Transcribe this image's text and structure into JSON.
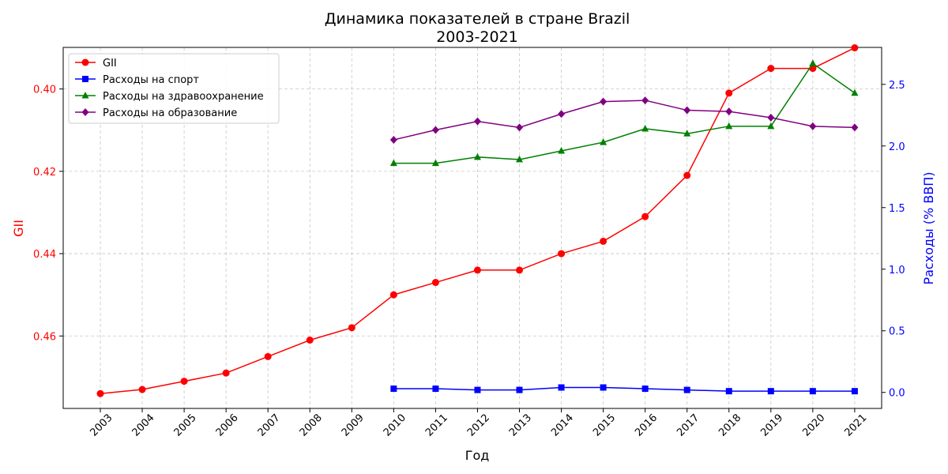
{
  "chart_data": {
    "type": "line",
    "title": "Динамика показателей в стране Brazil",
    "subtitle": "2003-2021",
    "xlabel": "Год",
    "ylabel_left": "GII",
    "ylabel_right": "Расходы (% ВВП)",
    "x": [
      2003,
      2004,
      2005,
      2006,
      2007,
      2008,
      2009,
      2010,
      2011,
      2012,
      2013,
      2014,
      2015,
      2016,
      2017,
      2018,
      2019,
      2020,
      2021
    ],
    "y_left": {
      "inverted": true,
      "lim": [
        0.3899,
        0.4776
      ],
      "ticks": [
        0.4,
        0.42,
        0.44,
        0.46
      ],
      "tick_labels": [
        "0.40",
        "0.42",
        "0.44",
        "0.46"
      ],
      "color": "#ff0000"
    },
    "y_right": {
      "lim": [
        -0.13,
        2.8
      ],
      "ticks": [
        0.0,
        0.5,
        1.0,
        1.5,
        2.0,
        2.5
      ],
      "tick_labels": [
        "0.0",
        "0.5",
        "1.0",
        "1.5",
        "2.0",
        "2.5"
      ],
      "color": "#0000ff"
    },
    "grid": true,
    "legend_position": "top-left",
    "series": [
      {
        "name": "GII",
        "axis": "left",
        "color": "#ff0000",
        "marker": "circle",
        "values": [
          0.474,
          0.473,
          0.471,
          0.469,
          0.465,
          0.461,
          0.458,
          0.45,
          0.447,
          0.444,
          0.444,
          0.44,
          0.437,
          0.431,
          0.421,
          0.401,
          0.395,
          0.395,
          0.39
        ]
      },
      {
        "name": "Расходы на спорт",
        "axis": "right",
        "color": "#0000ff",
        "marker": "square",
        "values": [
          null,
          null,
          null,
          null,
          null,
          null,
          null,
          0.03,
          0.03,
          0.02,
          0.02,
          0.04,
          0.04,
          0.03,
          0.02,
          0.01,
          0.01,
          0.01,
          0.01
        ]
      },
      {
        "name": "Расходы на здравоохранение",
        "axis": "right",
        "color": "#008000",
        "marker": "triangle",
        "values": [
          null,
          null,
          null,
          null,
          null,
          null,
          null,
          1.86,
          1.86,
          1.91,
          1.89,
          1.96,
          2.03,
          2.14,
          2.1,
          2.16,
          2.16,
          2.67,
          2.43
        ]
      },
      {
        "name": "Расходы на образование",
        "axis": "right",
        "color": "#800080",
        "marker": "diamond",
        "values": [
          null,
          null,
          null,
          null,
          null,
          null,
          null,
          2.05,
          2.13,
          2.2,
          2.15,
          2.26,
          2.36,
          2.37,
          2.29,
          2.28,
          2.23,
          2.16,
          2.15
        ]
      }
    ]
  }
}
